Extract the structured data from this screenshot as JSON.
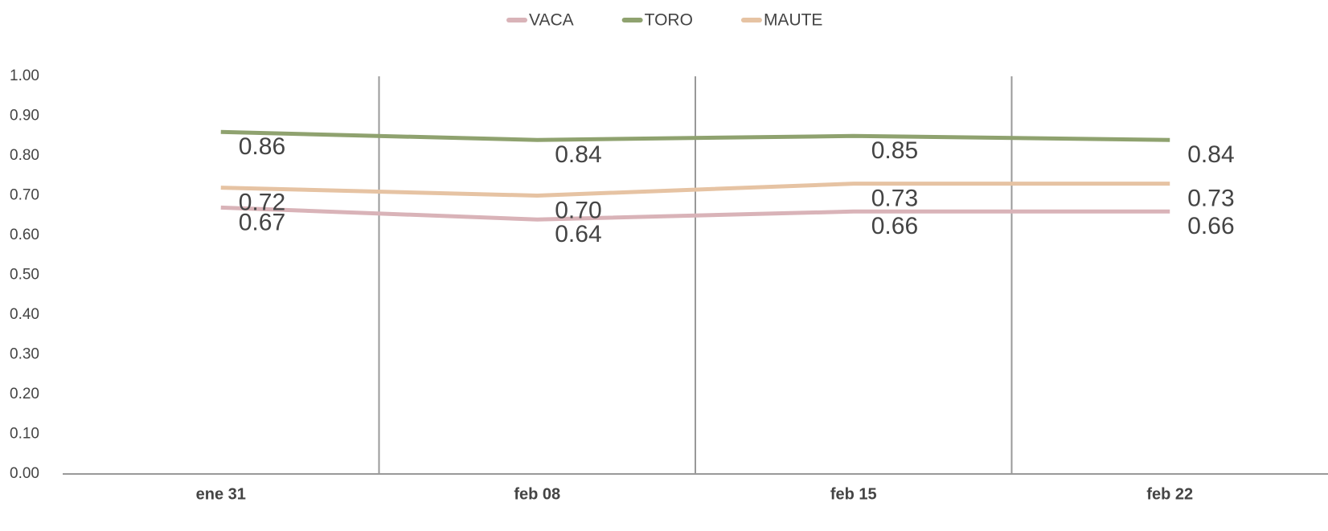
{
  "chart_data": {
    "type": "line",
    "categories": [
      "ene 31",
      "feb 08",
      "feb 15",
      "feb 22"
    ],
    "series": [
      {
        "name": "VACA",
        "color": "#d9b3b8",
        "values": [
          0.67,
          0.64,
          0.66,
          0.66
        ],
        "value_labels": [
          "0.67",
          "0.64",
          "0.66",
          "0.66"
        ]
      },
      {
        "name": "TORO",
        "color": "#8fa26f",
        "values": [
          0.86,
          0.84,
          0.85,
          0.84
        ],
        "value_labels": [
          "0.86",
          "0.84",
          "0.85",
          "0.84"
        ]
      },
      {
        "name": "MAUTE",
        "color": "#e6c3a3",
        "values": [
          0.72,
          0.7,
          0.73,
          0.73
        ],
        "value_labels": [
          "0.72",
          "0.70",
          "0.73",
          "0.73"
        ]
      }
    ],
    "ylim": [
      0,
      1
    ],
    "yticks": [
      {
        "value": 0,
        "label": "0.00"
      },
      {
        "value": 0.1,
        "label": "0.10"
      },
      {
        "value": 0.2,
        "label": "0.20"
      },
      {
        "value": 0.3,
        "label": "0.30"
      },
      {
        "value": 0.4,
        "label": "0.40"
      },
      {
        "value": 0.5,
        "label": "0.50"
      },
      {
        "value": 0.6,
        "label": "0.60"
      },
      {
        "value": 0.7,
        "label": "0.70"
      },
      {
        "value": 0.8,
        "label": "0.80"
      },
      {
        "value": 0.9,
        "label": "0.90"
      },
      {
        "value": 1,
        "label": "1.00"
      }
    ],
    "legend": "top"
  }
}
